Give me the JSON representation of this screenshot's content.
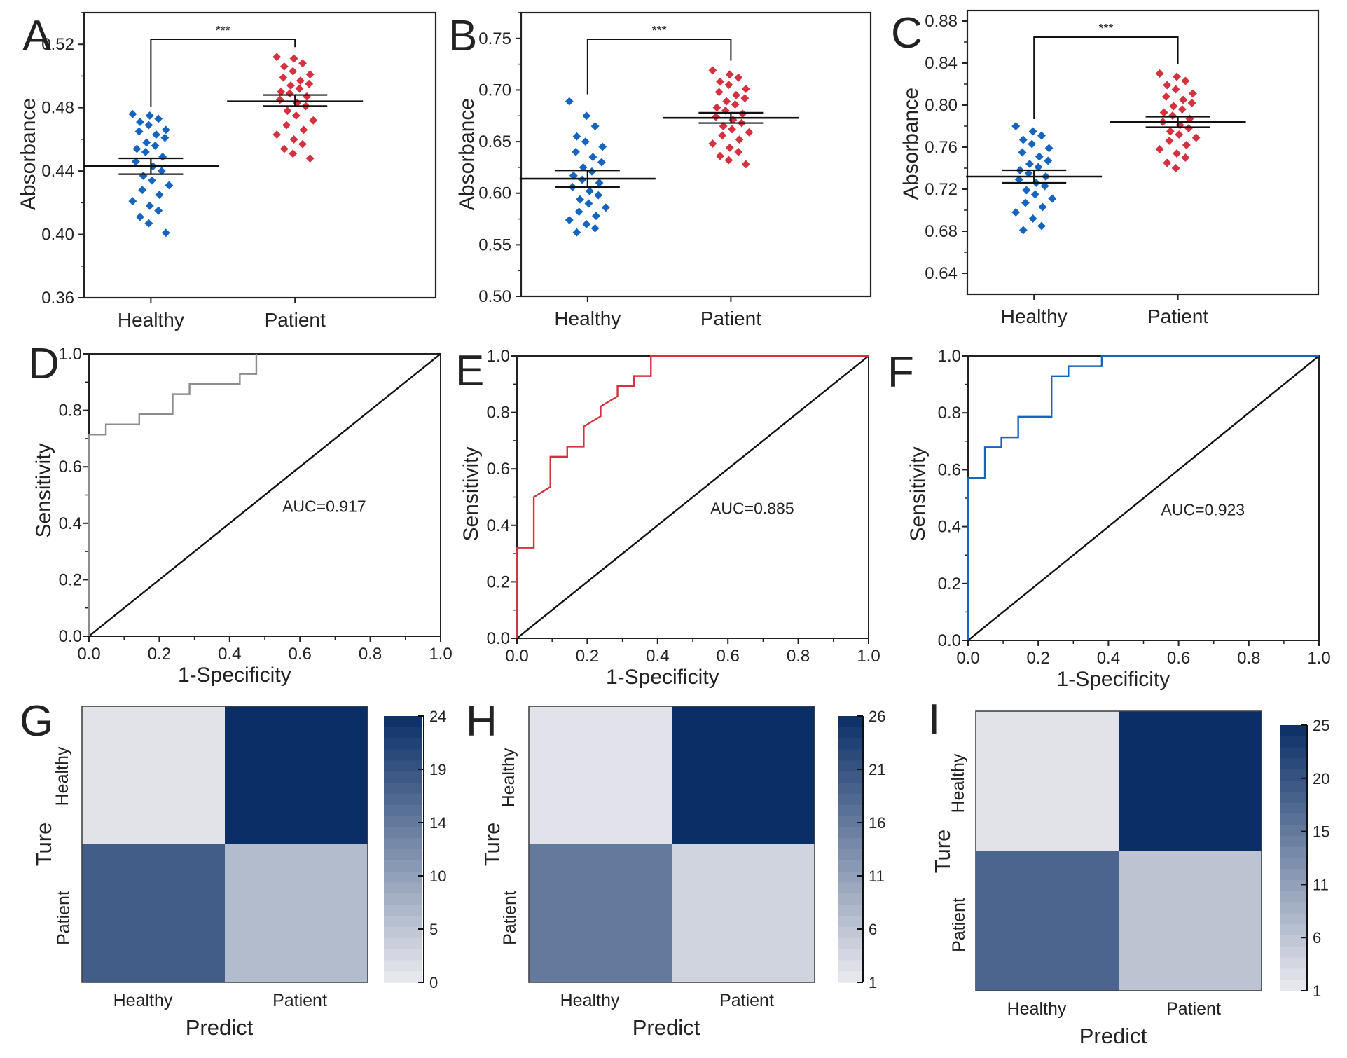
{
  "colors": {
    "healthy": "#1565c0",
    "patient": "#d6313f",
    "roc_d": "#8c8c8c",
    "roc_e": "#d6313f",
    "roc_f": "#1565c0",
    "heatmap_dark": "#0a2e66",
    "heatmap_light": "#ebebef"
  },
  "chart_data": [
    {
      "panel": "A",
      "type": "scatter",
      "categories": [
        "Healthy",
        "Patient"
      ],
      "ylabel": "Absorbance",
      "xlabel": "",
      "ylim": [
        0.36,
        0.54
      ],
      "yticks": [
        "0.36",
        "0.40",
        "0.44",
        "0.48",
        "0.52"
      ],
      "significance": "***",
      "series": [
        {
          "name": "Healthy",
          "mean": 0.443,
          "sem_low": 0.438,
          "sem_high": 0.448,
          "values": [
            0.476,
            0.475,
            0.473,
            0.471,
            0.469,
            0.466,
            0.465,
            0.463,
            0.461,
            0.458,
            0.456,
            0.454,
            0.452,
            0.449,
            0.446,
            0.443,
            0.44,
            0.437,
            0.434,
            0.431,
            0.428,
            0.425,
            0.421,
            0.418,
            0.415,
            0.411,
            0.407,
            0.401
          ]
        },
        {
          "name": "Patient",
          "mean": 0.484,
          "sem_low": 0.481,
          "sem_high": 0.488,
          "values": [
            0.512,
            0.511,
            0.508,
            0.506,
            0.503,
            0.501,
            0.499,
            0.497,
            0.495,
            0.494,
            0.492,
            0.49,
            0.489,
            0.487,
            0.485,
            0.483,
            0.481,
            0.478,
            0.475,
            0.472,
            0.469,
            0.466,
            0.463,
            0.46,
            0.457,
            0.454,
            0.451,
            0.448
          ]
        }
      ]
    },
    {
      "panel": "B",
      "type": "scatter",
      "categories": [
        "Healthy",
        "Patient"
      ],
      "ylabel": "Absorbance",
      "xlabel": "",
      "ylim": [
        0.5,
        0.775
      ],
      "yticks": [
        "0.50",
        "0.55",
        "0.60",
        "0.65",
        "0.70",
        "0.75"
      ],
      "significance": "***",
      "series": [
        {
          "name": "Healthy",
          "mean": 0.614,
          "sem_low": 0.606,
          "sem_high": 0.622,
          "values": [
            0.689,
            0.675,
            0.665,
            0.655,
            0.65,
            0.645,
            0.64,
            0.635,
            0.63,
            0.625,
            0.621,
            0.617,
            0.613,
            0.61,
            0.606,
            0.602,
            0.598,
            0.594,
            0.59,
            0.586,
            0.582,
            0.578,
            0.574,
            0.57,
            0.566,
            0.562
          ]
        },
        {
          "name": "Patient",
          "mean": 0.673,
          "sem_low": 0.668,
          "sem_high": 0.678,
          "values": [
            0.719,
            0.715,
            0.712,
            0.708,
            0.705,
            0.701,
            0.698,
            0.695,
            0.692,
            0.689,
            0.686,
            0.683,
            0.68,
            0.677,
            0.674,
            0.671,
            0.668,
            0.665,
            0.662,
            0.659,
            0.656,
            0.652,
            0.648,
            0.644,
            0.64,
            0.636,
            0.632,
            0.628
          ]
        }
      ]
    },
    {
      "panel": "C",
      "type": "scatter",
      "categories": [
        "Healthy",
        "Patient"
      ],
      "ylabel": "Absorbance",
      "xlabel": "",
      "ylim": [
        0.62,
        0.89
      ],
      "yticks": [
        "0.64",
        "0.68",
        "0.72",
        "0.76",
        "0.80",
        "0.84",
        "0.88"
      ],
      "significance": "***",
      "series": [
        {
          "name": "Healthy",
          "mean": 0.732,
          "sem_low": 0.726,
          "sem_high": 0.738,
          "values": [
            0.78,
            0.775,
            0.771,
            0.767,
            0.763,
            0.759,
            0.755,
            0.751,
            0.747,
            0.744,
            0.741,
            0.738,
            0.735,
            0.732,
            0.729,
            0.726,
            0.723,
            0.719,
            0.715,
            0.711,
            0.707,
            0.703,
            0.698,
            0.692,
            0.685,
            0.681
          ]
        },
        {
          "name": "Patient",
          "mean": 0.784,
          "sem_low": 0.779,
          "sem_high": 0.789,
          "values": [
            0.83,
            0.827,
            0.823,
            0.819,
            0.815,
            0.811,
            0.808,
            0.805,
            0.802,
            0.799,
            0.796,
            0.793,
            0.79,
            0.787,
            0.784,
            0.781,
            0.778,
            0.775,
            0.772,
            0.769,
            0.766,
            0.762,
            0.758,
            0.754,
            0.75,
            0.745,
            0.74
          ]
        }
      ]
    },
    {
      "panel": "D",
      "type": "line",
      "xlabel": "1-Specificity",
      "ylabel": "Sensitivity",
      "xlim": [
        0,
        1
      ],
      "ylim": [
        0,
        1
      ],
      "xticks": [
        "0.0",
        "0.2",
        "0.4",
        "0.6",
        "0.8",
        "1.0"
      ],
      "yticks": [
        "0.0",
        "0.2",
        "0.4",
        "0.6",
        "0.8",
        "1.0"
      ],
      "annotation": "AUC=0.917",
      "roc": {
        "x": [
          0,
          0,
          0.048,
          0.048,
          0.143,
          0.143,
          0.238,
          0.238,
          0.286,
          0.286,
          0.429,
          0.429,
          0.476,
          0.476
        ],
        "y": [
          0,
          0.714,
          0.714,
          0.75,
          0.75,
          0.786,
          0.786,
          0.857,
          0.857,
          0.893,
          0.893,
          0.929,
          0.929,
          1.0
        ]
      },
      "diagonal": {
        "x": [
          0,
          1
        ],
        "y": [
          0,
          1
        ]
      }
    },
    {
      "panel": "E",
      "type": "line",
      "xlabel": "1-Specificity",
      "ylabel": "Sensitivity",
      "xlim": [
        0,
        1
      ],
      "ylim": [
        0,
        1
      ],
      "xticks": [
        "0.0",
        "0.2",
        "0.4",
        "0.6",
        "0.8",
        "1.0"
      ],
      "yticks": [
        "0.0",
        "0.2",
        "0.4",
        "0.6",
        "0.8",
        "1.0"
      ],
      "annotation": "AUC=0.885",
      "roc": {
        "x": [
          0,
          0,
          0.048,
          0.048,
          0.095,
          0.095,
          0.143,
          0.143,
          0.19,
          0.19,
          0.238,
          0.238,
          0.286,
          0.286,
          0.333,
          0.333,
          0.381,
          0.381,
          1.0
        ],
        "y": [
          0,
          0.321,
          0.321,
          0.5,
          0.536,
          0.643,
          0.643,
          0.679,
          0.679,
          0.75,
          0.786,
          0.821,
          0.857,
          0.893,
          0.893,
          0.929,
          0.929,
          1.0,
          1.0
        ]
      },
      "diagonal": {
        "x": [
          0,
          1
        ],
        "y": [
          0,
          1
        ]
      }
    },
    {
      "panel": "F",
      "type": "line",
      "xlabel": "1-Specificity",
      "ylabel": "Sensitivity",
      "xlim": [
        0,
        1
      ],
      "ylim": [
        0,
        1
      ],
      "xticks": [
        "0.0",
        "0.2",
        "0.4",
        "0.6",
        "0.8",
        "1.0"
      ],
      "yticks": [
        "0.0",
        "0.2",
        "0.4",
        "0.6",
        "0.8",
        "1.0"
      ],
      "annotation": "AUC=0.923",
      "roc": {
        "x": [
          0,
          0,
          0.048,
          0.048,
          0.095,
          0.095,
          0.143,
          0.143,
          0.238,
          0.238,
          0.286,
          0.286,
          0.381,
          0.381,
          1.0
        ],
        "y": [
          0,
          0.571,
          0.571,
          0.679,
          0.679,
          0.714,
          0.714,
          0.786,
          0.786,
          0.929,
          0.929,
          0.964,
          0.964,
          1.0,
          1.0
        ]
      },
      "diagonal": {
        "x": [
          0,
          1
        ],
        "y": [
          0,
          1
        ]
      }
    },
    {
      "panel": "G",
      "type": "heatmap",
      "xlabel": "Predict",
      "ylabel": "Ture",
      "x_categories": [
        "Healthy",
        "Patient"
      ],
      "y_categories": [
        "Healthy",
        "Patient"
      ],
      "values": [
        [
          1,
          24
        ],
        [
          18,
          6
        ]
      ],
      "colorbar_range": [
        0,
        24
      ],
      "colorbar_ticks": [
        "24",
        "19",
        "14",
        "10",
        "5",
        "0"
      ]
    },
    {
      "panel": "H",
      "type": "heatmap",
      "xlabel": "Predict",
      "ylabel": "Ture",
      "x_categories": [
        "Healthy",
        "Patient"
      ],
      "y_categories": [
        "Healthy",
        "Patient"
      ],
      "values": [
        [
          2,
          26
        ],
        [
          16,
          4
        ]
      ],
      "colorbar_range": [
        1,
        26
      ],
      "colorbar_ticks": [
        "26",
        "21",
        "16",
        "11",
        "6",
        "1"
      ]
    },
    {
      "panel": "I",
      "type": "heatmap",
      "xlabel": "Predict",
      "ylabel": "Ture",
      "x_categories": [
        "Healthy",
        "Patient"
      ],
      "y_categories": [
        "Healthy",
        "Patient"
      ],
      "values": [
        [
          2,
          25
        ],
        [
          18,
          6
        ]
      ],
      "colorbar_range": [
        1,
        25
      ],
      "colorbar_ticks": [
        "25",
        "20",
        "15",
        "11",
        "6",
        "1"
      ]
    }
  ]
}
